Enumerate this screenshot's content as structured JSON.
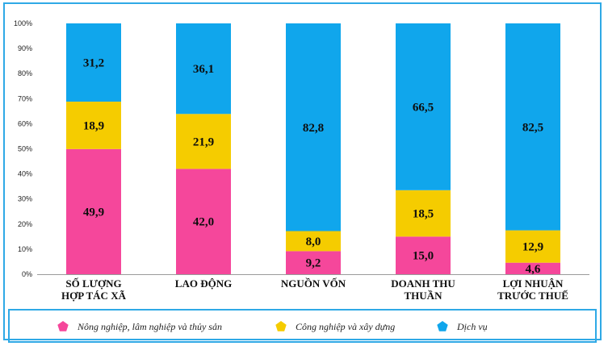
{
  "chart_data": {
    "type": "bar",
    "stacked": true,
    "percent_stacked": true,
    "categories": [
      [
        "SỐ LƯỢNG",
        "HỢP TÁC XÃ"
      ],
      [
        "LAO ĐỘNG"
      ],
      [
        "NGUỒN VỐN"
      ],
      [
        "DOANH THU",
        "THUẦN"
      ],
      [
        "LỢI NHUẬN",
        "TRƯỚC THUẾ"
      ]
    ],
    "series": [
      {
        "name": "Nông nghiệp, lâm nghiệp và thủy sản",
        "color": "#f5479b",
        "values": [
          49.9,
          42.0,
          9.2,
          15.0,
          4.6
        ],
        "labels": [
          "49,9",
          "42,0",
          "9,2",
          "15,0",
          "4,6"
        ]
      },
      {
        "name": "Công nghiệp và xây dựng",
        "color": "#f5cc00",
        "values": [
          18.9,
          21.9,
          8.0,
          18.5,
          12.9
        ],
        "labels": [
          "18,9",
          "21,9",
          "8,0",
          "18,5",
          "12,9"
        ]
      },
      {
        "name": "Dịch vụ",
        "color": "#10a6ec",
        "values": [
          31.2,
          36.1,
          82.8,
          66.5,
          82.5
        ],
        "labels": [
          "31,2",
          "36,1",
          "82,8",
          "66,5",
          "82,5"
        ]
      }
    ],
    "yticks": [
      "0%",
      "10%",
      "20%",
      "30%",
      "40%",
      "50%",
      "60%",
      "70%",
      "80%",
      "90%",
      "100%"
    ],
    "ylim": [
      0,
      100
    ],
    "grid": false,
    "legend_position": "bottom"
  }
}
